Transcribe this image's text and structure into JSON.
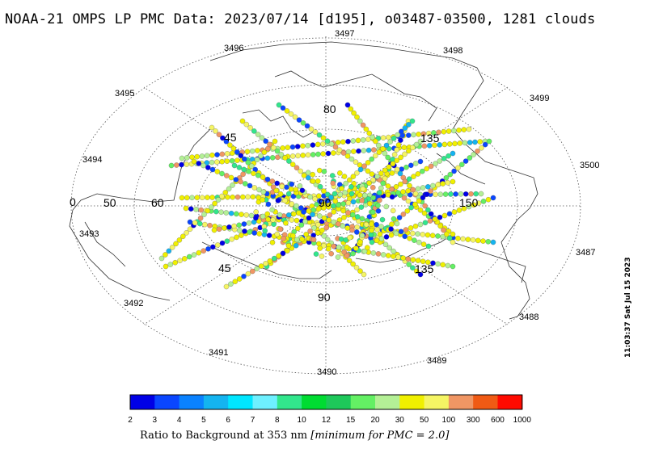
{
  "title": {
    "prefix": "NOAA-21 OMPS LP PMC Data: ",
    "date": "2023/07/14",
    "doy": "[d195]",
    "orbits": "o03487-03500",
    "cloud_count": "1281 clouds",
    "full": "NOAA-21 OMPS LP PMC Data: 2023/07/14 [d195], o03487-03500, 1281 clouds"
  },
  "orbit_labels": [
    "3487",
    "3488",
    "3489",
    "3490",
    "3491",
    "3492",
    "3493",
    "3494",
    "3495",
    "3496",
    "3497",
    "3498",
    "3499",
    "3500"
  ],
  "longitude_labels": {
    "zero": "0",
    "l45a": "45",
    "l45b": "45",
    "l60": "60",
    "l80": "80",
    "l50": "50",
    "center": "90",
    "l135a": "135",
    "l135b": "135",
    "l150": "150",
    "l90b": "90"
  },
  "legend": {
    "ticks": [
      "2",
      "3",
      "4",
      "5",
      "6",
      "7",
      "8",
      "10",
      "12",
      "15",
      "20",
      "30",
      "50",
      "100",
      "300",
      "600",
      "1000"
    ],
    "colors": [
      "#0000e6",
      "#0a46ff",
      "#0a82ff",
      "#14b4f0",
      "#00e6ff",
      "#6ef0ff",
      "#32e68c",
      "#00dc32",
      "#1ec85a",
      "#64f064",
      "#b4f096",
      "#f0f000",
      "#f5f564",
      "#f09664",
      "#f05a14",
      "#ff0a00"
    ],
    "caption_main": "Ratio to Background at 353 nm ",
    "caption_note": "[minimum for PMC = 2.0]"
  },
  "timestamp": "11:03:37 Sat Jul 15 2023",
  "colors": {
    "land": "#444444",
    "grid": "#555555"
  }
}
